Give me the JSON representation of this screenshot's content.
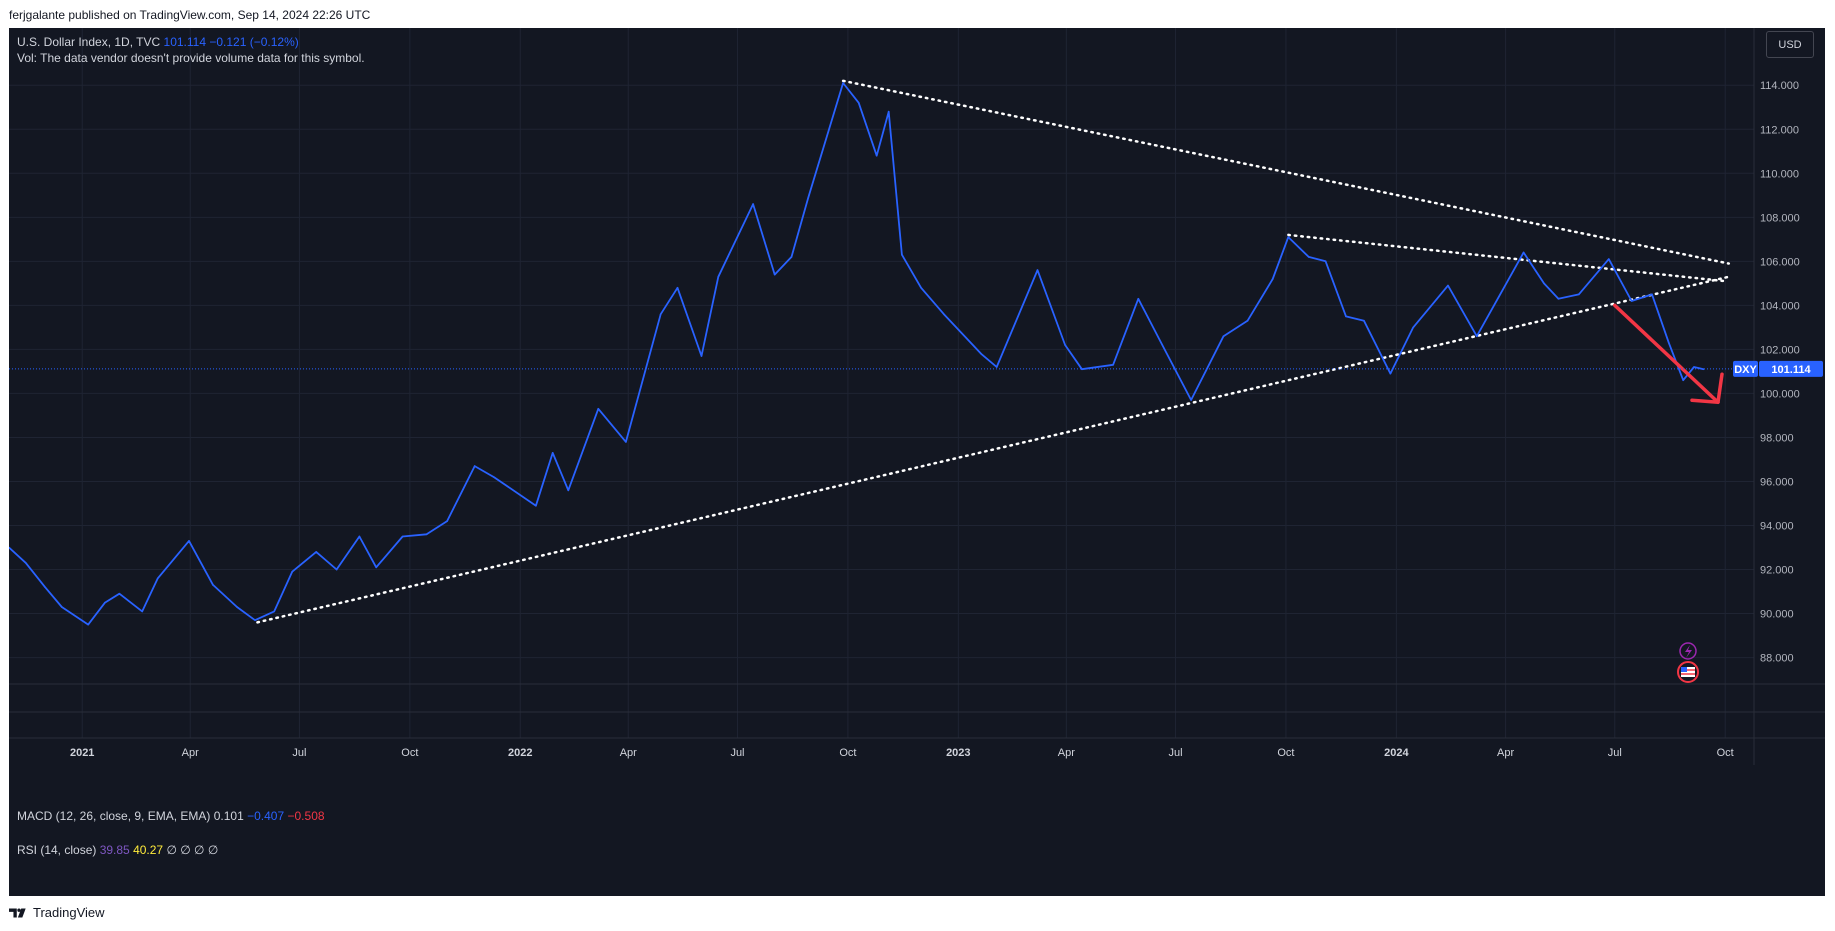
{
  "header": {
    "publisher_line": "ferjgalante published on TradingView.com, Sep 14, 2024 22:26 UTC"
  },
  "legend": {
    "symbol": "U.S. Dollar Index, 1D, TVC",
    "price": "101.114",
    "change": "−0.121 (−0.12%)",
    "vol_note": "Vol: The data vendor doesn't provide volume data for this symbol.",
    "macd_label": "MACD (12, 26, close, 9, EMA, EMA)",
    "macd_values": [
      "0.101",
      "−0.407",
      "−0.508"
    ],
    "rsi_label": "RSI (14, close)",
    "rsi_values": [
      "39.85",
      "40.27"
    ],
    "rsi_empty": "∅ ∅ ∅ ∅"
  },
  "toolbar": {
    "currency_button": "USD"
  },
  "footer": {
    "brand": "TradingView"
  },
  "colors": {
    "background": "#131722",
    "line": "#2962ff",
    "grid": "#1f2433",
    "arrow": "#f23645",
    "trendline": "#ffffff"
  },
  "chart_data": {
    "type": "line",
    "title": "U.S. Dollar Index, 1D, TVC",
    "symbol": "DXY",
    "last_price": 101.114,
    "last_price_label": "101.114",
    "ylim": [
      86.8,
      116.6
    ],
    "xlim": [
      "2020-11-01",
      "2024-10-25"
    ],
    "grid": true,
    "y_ticks": [
      "88.000",
      "90.000",
      "92.000",
      "94.000",
      "96.000",
      "98.000",
      "100.000",
      "102.000",
      "104.000",
      "106.000",
      "108.000",
      "110.000",
      "112.000",
      "114.000"
    ],
    "x_ticks": [
      {
        "label": "2021",
        "date": "2021-01-01",
        "bold": true
      },
      {
        "label": "Apr",
        "date": "2021-04-01",
        "bold": false
      },
      {
        "label": "Jul",
        "date": "2021-07-01",
        "bold": false
      },
      {
        "label": "Oct",
        "date": "2021-10-01",
        "bold": false
      },
      {
        "label": "2022",
        "date": "2022-01-01",
        "bold": true
      },
      {
        "label": "Apr",
        "date": "2022-04-01",
        "bold": false
      },
      {
        "label": "Jul",
        "date": "2022-07-01",
        "bold": false
      },
      {
        "label": "Oct",
        "date": "2022-10-01",
        "bold": false
      },
      {
        "label": "2023",
        "date": "2023-01-01",
        "bold": true
      },
      {
        "label": "Apr",
        "date": "2023-04-01",
        "bold": false
      },
      {
        "label": "Jul",
        "date": "2023-07-01",
        "bold": false
      },
      {
        "label": "Oct",
        "date": "2023-10-01",
        "bold": false
      },
      {
        "label": "2024",
        "date": "2024-01-01",
        "bold": true
      },
      {
        "label": "Apr",
        "date": "2024-04-01",
        "bold": false
      },
      {
        "label": "Jul",
        "date": "2024-07-01",
        "bold": false
      },
      {
        "label": "Oct",
        "date": "2024-10-01",
        "bold": false
      }
    ],
    "series": [
      {
        "values": [
          [
            "2020-11-01",
            93.0
          ],
          [
            "2020-11-15",
            92.3
          ],
          [
            "2020-12-01",
            91.2
          ],
          [
            "2020-12-15",
            90.3
          ],
          [
            "2021-01-06",
            89.5
          ],
          [
            "2021-01-20",
            90.5
          ],
          [
            "2021-02-01",
            90.9
          ],
          [
            "2021-02-20",
            90.1
          ],
          [
            "2021-03-05",
            91.6
          ],
          [
            "2021-03-31",
            93.3
          ],
          [
            "2021-04-20",
            91.3
          ],
          [
            "2021-05-10",
            90.3
          ],
          [
            "2021-05-25",
            89.7
          ],
          [
            "2021-06-10",
            90.1
          ],
          [
            "2021-06-25",
            91.9
          ],
          [
            "2021-07-15",
            92.8
          ],
          [
            "2021-08-01",
            92.0
          ],
          [
            "2021-08-20",
            93.5
          ],
          [
            "2021-09-03",
            92.1
          ],
          [
            "2021-09-25",
            93.5
          ],
          [
            "2021-10-15",
            93.6
          ],
          [
            "2021-11-01",
            94.2
          ],
          [
            "2021-11-24",
            96.7
          ],
          [
            "2021-12-10",
            96.2
          ],
          [
            "2022-01-14",
            94.9
          ],
          [
            "2022-01-28",
            97.3
          ],
          [
            "2022-02-10",
            95.6
          ],
          [
            "2022-03-07",
            99.3
          ],
          [
            "2022-03-30",
            97.8
          ],
          [
            "2022-04-28",
            103.6
          ],
          [
            "2022-05-12",
            104.8
          ],
          [
            "2022-06-01",
            101.7
          ],
          [
            "2022-06-15",
            105.3
          ],
          [
            "2022-07-14",
            108.6
          ],
          [
            "2022-08-01",
            105.4
          ],
          [
            "2022-08-15",
            106.2
          ],
          [
            "2022-08-29",
            108.9
          ],
          [
            "2022-09-27",
            114.1
          ],
          [
            "2022-10-10",
            113.2
          ],
          [
            "2022-10-25",
            110.8
          ],
          [
            "2022-11-04",
            112.8
          ],
          [
            "2022-11-15",
            106.3
          ],
          [
            "2022-12-01",
            104.8
          ],
          [
            "2022-12-20",
            103.6
          ],
          [
            "2023-01-20",
            101.8
          ],
          [
            "2023-02-02",
            101.2
          ],
          [
            "2023-03-08",
            105.6
          ],
          [
            "2023-03-31",
            102.2
          ],
          [
            "2023-04-14",
            101.1
          ],
          [
            "2023-05-10",
            101.3
          ],
          [
            "2023-05-31",
            104.3
          ],
          [
            "2023-06-20",
            102.2
          ],
          [
            "2023-07-14",
            99.7
          ],
          [
            "2023-08-10",
            102.6
          ],
          [
            "2023-08-30",
            103.3
          ],
          [
            "2023-09-20",
            105.2
          ],
          [
            "2023-10-03",
            107.1
          ],
          [
            "2023-10-20",
            106.2
          ],
          [
            "2023-11-03",
            106.0
          ],
          [
            "2023-11-20",
            103.5
          ],
          [
            "2023-12-05",
            103.3
          ],
          [
            "2023-12-27",
            100.9
          ],
          [
            "2024-01-15",
            103.0
          ],
          [
            "2024-02-13",
            104.9
          ],
          [
            "2024-03-08",
            102.6
          ],
          [
            "2024-04-16",
            106.4
          ],
          [
            "2024-05-03",
            105.0
          ],
          [
            "2024-05-15",
            104.3
          ],
          [
            "2024-06-01",
            104.5
          ],
          [
            "2024-06-26",
            106.1
          ],
          [
            "2024-07-15",
            104.2
          ],
          [
            "2024-08-01",
            104.5
          ],
          [
            "2024-08-15",
            102.3
          ],
          [
            "2024-08-27",
            100.6
          ],
          [
            "2024-09-05",
            101.2
          ],
          [
            "2024-09-13",
            101.1
          ]
        ]
      }
    ],
    "annotations": {
      "trendlines": [
        {
          "from": [
            "2021-05-27",
            89.6
          ],
          "to": [
            "2024-10-04",
            105.3
          ]
        },
        {
          "from": [
            "2022-09-27",
            114.2
          ],
          "to": [
            "2024-10-04",
            105.9
          ]
        },
        {
          "from": [
            "2023-10-03",
            107.2
          ],
          "to": [
            "2024-10-01",
            105.1
          ]
        }
      ],
      "arrow": {
        "from": [
          "2024-07-01",
          104.0
        ],
        "to": [
          "2024-09-25",
          99.6
        ]
      }
    }
  }
}
